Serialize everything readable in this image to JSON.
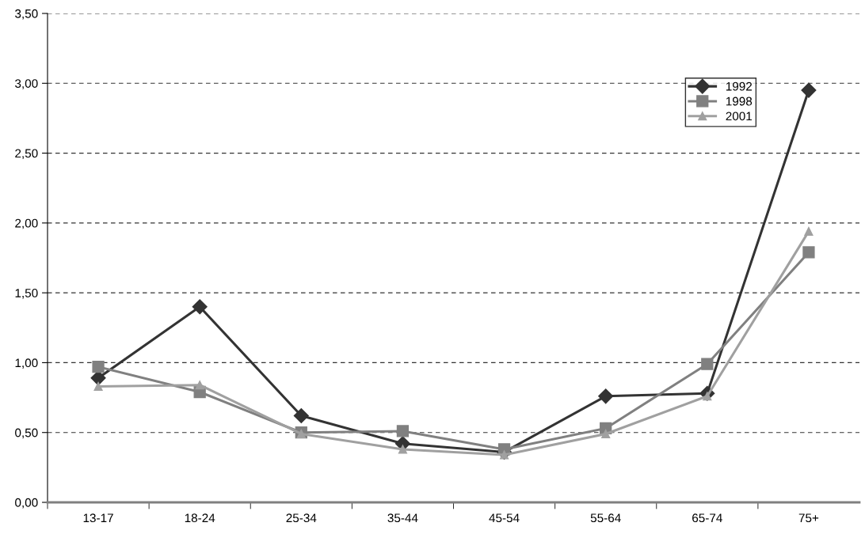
{
  "chart_data": {
    "type": "line",
    "categories": [
      "13-17",
      "18-24",
      "25-34",
      "35-44",
      "45-54",
      "55-64",
      "65-74",
      "75+"
    ],
    "series": [
      {
        "name": "1992",
        "color": "#333333",
        "marker": "diamond",
        "values": [
          0.89,
          1.4,
          0.62,
          0.42,
          0.36,
          0.76,
          0.78,
          2.95
        ]
      },
      {
        "name": "1998",
        "color": "#808080",
        "marker": "square",
        "values": [
          0.97,
          0.79,
          0.5,
          0.51,
          0.38,
          0.53,
          0.99,
          1.79
        ]
      },
      {
        "name": "2001",
        "color": "#a0a0a0",
        "marker": "triangle",
        "values": [
          0.83,
          0.84,
          0.49,
          0.38,
          0.34,
          0.49,
          0.76,
          1.94
        ]
      }
    ],
    "ylim": [
      0,
      3.5
    ],
    "yticks": [
      {
        "value": 0,
        "label": "0,00"
      },
      {
        "value": 0.5,
        "label": "0,50"
      },
      {
        "value": 1,
        "label": "1,00"
      },
      {
        "value": 1.5,
        "label": "1,50"
      },
      {
        "value": 2,
        "label": "2,00"
      },
      {
        "value": 2.5,
        "label": "2,50"
      },
      {
        "value": 3,
        "label": "3,00"
      },
      {
        "value": 3.5,
        "label": "3,50"
      }
    ],
    "grid": "y",
    "legend": "top right",
    "line_style": "solid"
  }
}
